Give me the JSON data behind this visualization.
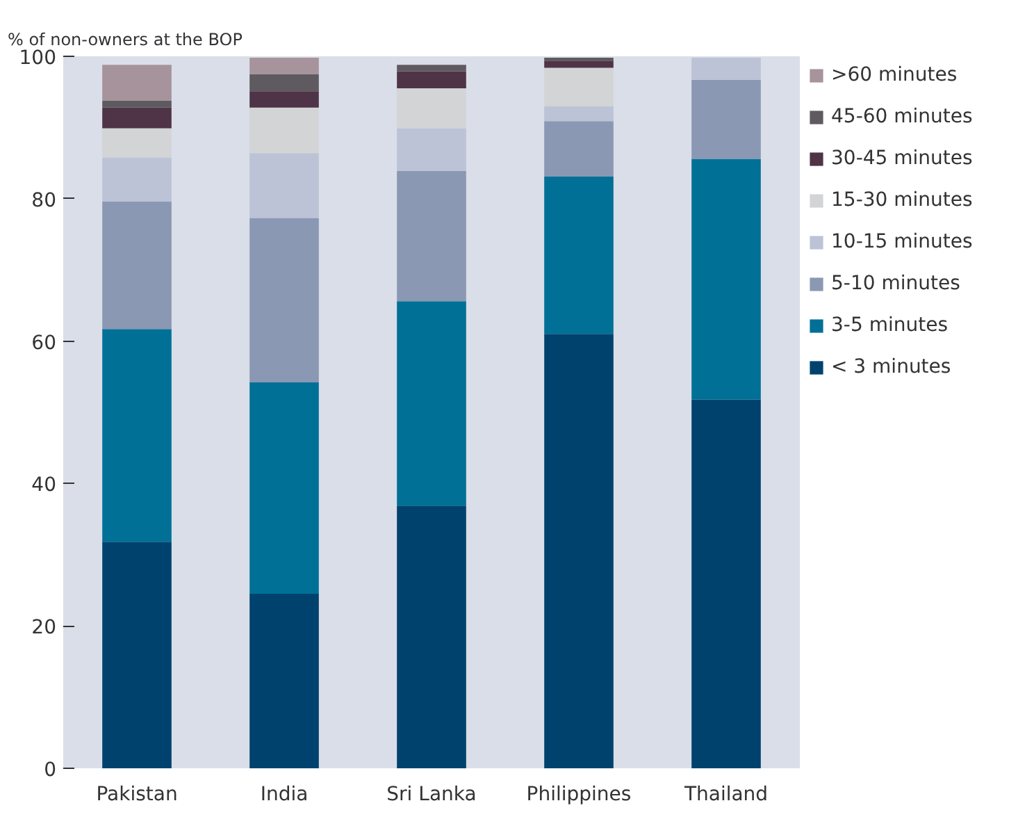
{
  "chart_data": {
    "type": "bar",
    "stacked": true,
    "ylabel": "% of non-owners at the BOP",
    "categories": [
      "Pakistan",
      "India",
      "Sri Lanka",
      "Philippines",
      "Thailand"
    ],
    "series": [
      {
        "name": "< 3 minutes",
        "color": "#00426e",
        "values": [
          31.8,
          24.5,
          36.9,
          61.0,
          51.8
        ]
      },
      {
        "name": "3-5 minutes",
        "color": "#007096",
        "values": [
          29.9,
          29.7,
          28.7,
          22.1,
          33.8
        ]
      },
      {
        "name": "5-10 minutes",
        "color": "#8a98b3",
        "values": [
          17.9,
          23.1,
          18.3,
          7.8,
          11.1
        ]
      },
      {
        "name": "10-15 minutes",
        "color": "#bcc3d6",
        "values": [
          6.2,
          9.1,
          6.0,
          2.1,
          3.1
        ]
      },
      {
        "name": "15-30 minutes",
        "color": "#d3d4d6",
        "values": [
          4.1,
          6.4,
          5.6,
          5.4,
          0
        ]
      },
      {
        "name": "30-45 minutes",
        "color": "#4f3447",
        "values": [
          2.9,
          2.3,
          2.4,
          1.0,
          0
        ]
      },
      {
        "name": "45-60 minutes",
        "color": "#5e5a60",
        "values": [
          1.0,
          2.4,
          0.9,
          0.4,
          0
        ]
      },
      {
        "name": ">60 minutes",
        "color": "#a6939b",
        "values": [
          5.0,
          2.3,
          0,
          0,
          0
        ]
      }
    ],
    "ylim": [
      0,
      100
    ],
    "yticks": [
      0,
      20,
      40,
      60,
      80,
      100
    ],
    "grid": false,
    "legend": "right"
  }
}
